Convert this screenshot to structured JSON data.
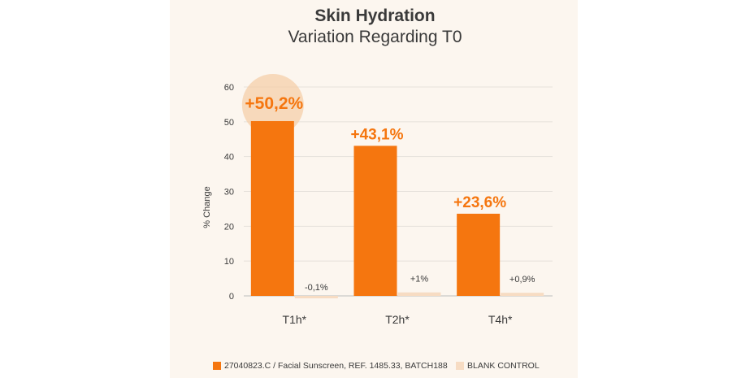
{
  "chart_data": {
    "type": "bar",
    "title": "Skin Hydration",
    "subtitle": "Variation Regarding T0",
    "ylabel": "% Change",
    "xlabel": "",
    "ylim": [
      0,
      60
    ],
    "yticks": [
      0,
      10,
      20,
      30,
      40,
      50,
      60
    ],
    "grid": true,
    "legend_position": "bottom",
    "categories": [
      "T1h*",
      "T2h*",
      "T4h*"
    ],
    "series": [
      {
        "name": "27040823.C / Facial Sunscreen, REF. 1485.33, BATCH188",
        "values": [
          50.2,
          43.1,
          23.6
        ],
        "labels": [
          "+50,2%",
          "+43,1%",
          "+23,6%"
        ],
        "color": "#f5760f"
      },
      {
        "name": "BLANK CONTROL",
        "values": [
          -0.1,
          1,
          0.9
        ],
        "labels": [
          "-0,1%",
          "+1%",
          "+0,9%"
        ],
        "color": "#f7dcc3"
      }
    ],
    "highlight": {
      "category": "T1h*",
      "color": "#f6cfaa"
    }
  }
}
